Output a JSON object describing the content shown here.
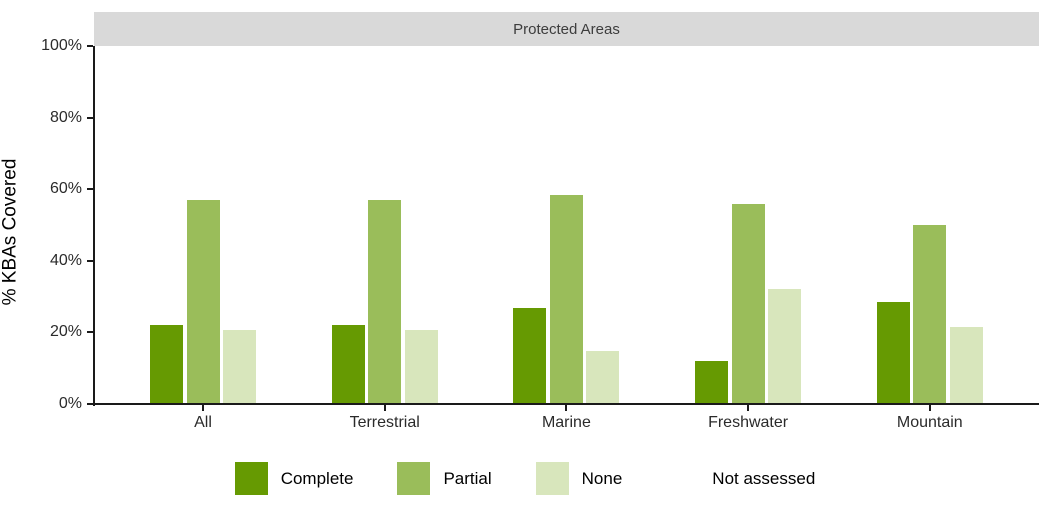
{
  "figure": {
    "facet_label": "Protected Areas",
    "y_axis_title": "% KBAs Covered"
  },
  "chart_data": {
    "type": "bar",
    "title": "Protected Areas",
    "xlabel": "",
    "ylabel": "% KBAs Covered",
    "categories": [
      "All",
      "Terrestrial",
      "Marine",
      "Freshwater",
      "Mountain"
    ],
    "series": [
      {
        "name": "Complete",
        "color": "#669A02",
        "values": [
          22,
          22,
          26.7,
          12,
          28.6
        ]
      },
      {
        "name": "Partial",
        "color": "#9ABD5A",
        "values": [
          57,
          57,
          58.5,
          56,
          49.9
        ]
      },
      {
        "name": "None",
        "color": "#D8E6BC",
        "values": [
          20.8,
          20.8,
          14.7,
          32,
          21.4
        ]
      }
    ],
    "legend_entries": [
      {
        "label": "Complete",
        "color": "#669A02"
      },
      {
        "label": "Partial",
        "color": "#9ABD5A"
      },
      {
        "label": "None",
        "color": "#D8E6BC"
      },
      {
        "label": "Not assessed",
        "color": "#FFFFFF"
      }
    ],
    "y_ticks": [
      {
        "value": 0,
        "label": "0%"
      },
      {
        "value": 20,
        "label": "20%"
      },
      {
        "value": 40,
        "label": "40%"
      },
      {
        "value": 60,
        "label": "60%"
      },
      {
        "value": 80,
        "label": "80%"
      },
      {
        "value": 100,
        "label": "100%"
      }
    ],
    "ylim": [
      0,
      100
    ],
    "grid": false,
    "legend_position": "bottom"
  }
}
